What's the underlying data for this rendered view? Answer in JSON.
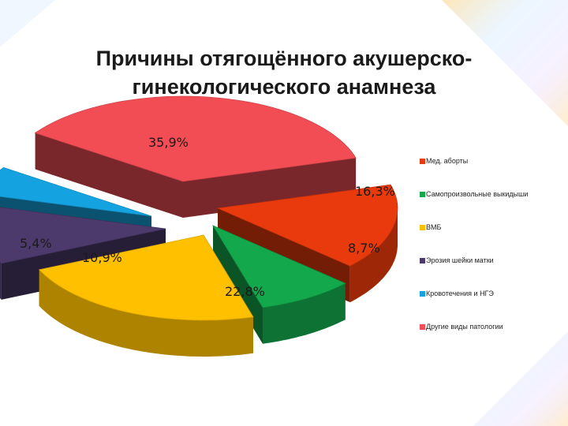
{
  "title_lines": [
    "Причины отягощённого акушерско-",
    "гинекологического анамнеза"
  ],
  "chart_data": {
    "type": "pie",
    "style": "exploded 3D pie",
    "categories": [
      "Мед. аборты",
      "Самопроизвольные выкидыши",
      "ВМБ",
      "Эрозия шейки матки",
      "Кровотечения и НГЭ",
      "Другие виды патологии"
    ],
    "values": [
      16.3,
      8.7,
      22.8,
      10.9,
      5.4,
      35.9
    ],
    "labels": [
      "16,3%",
      "8,7%",
      "22,8%",
      "10,9%",
      "5,4%",
      "35,9%"
    ],
    "colors": [
      "#E83A0C",
      "#13A84C",
      "#FFC000",
      "#4B3A6B",
      "#14A3E0",
      "#F24D55"
    ],
    "legend_position": "right"
  }
}
